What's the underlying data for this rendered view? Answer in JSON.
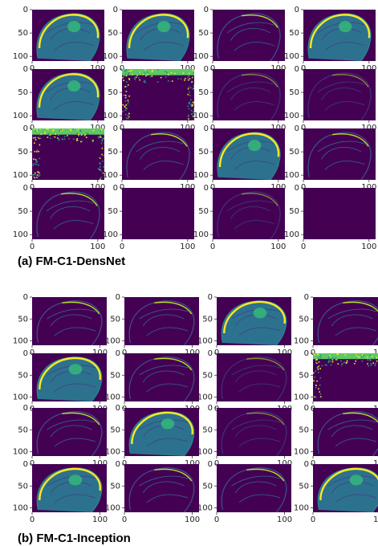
{
  "axes": {
    "xlim": [
      0,
      110
    ],
    "ylim": [
      0,
      110
    ],
    "xticks": [
      0,
      100
    ],
    "yticks": [
      0,
      50,
      100
    ]
  },
  "figures": [
    {
      "caption": "(a) FM-C1-DensNet"
    },
    {
      "caption": "(b) FM-C1-Inception"
    }
  ]
}
